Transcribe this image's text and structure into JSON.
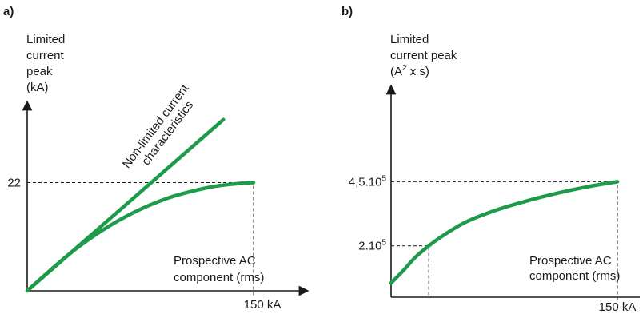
{
  "colors": {
    "curve": "#1e9b4a",
    "axis": "#1a1a1a"
  },
  "chart_data": [
    {
      "panel_label": "a)",
      "type": "line",
      "ylabel_lines": [
        "Limited",
        "current",
        "peak",
        "(kA)"
      ],
      "xlabel_lines": [
        "Prospective AC",
        "component (rms)"
      ],
      "xlim": [
        0,
        150
      ],
      "ylim": [
        0,
        38
      ],
      "xtick_label": "150 kA",
      "ytick_label": "22",
      "reference": {
        "x": 150,
        "y": 22
      },
      "annotation_lines": [
        "Non-limited current",
        "characteristics"
      ],
      "series": [
        {
          "x": [
            0,
            130
          ],
          "y": [
            0,
            34.8
          ]
        },
        {
          "x": [
            0,
            30,
            60,
            90,
            120,
            140,
            150
          ],
          "y": [
            0,
            8.0,
            14.2,
            18.5,
            21.0,
            21.8,
            22.0
          ]
        }
      ]
    },
    {
      "panel_label": "b)",
      "type": "line",
      "ylabel_lines": [
        "Limited",
        "current peak"
      ],
      "ylabel_unit": {
        "pre": "(A",
        "sup": "2",
        "post": " x s)"
      },
      "xlabel_lines": [
        "Prospective AC",
        "component (rms)"
      ],
      "xlim": [
        0,
        150
      ],
      "ylim": [
        0,
        700000
      ],
      "xtick_label": "150 kA",
      "yticks": [
        {
          "value": 450000,
          "base": "4,5.10",
          "sup": "5"
        },
        {
          "value": 200000,
          "base": "2.10",
          "sup": "5"
        }
      ],
      "reference_x_at_low": 25,
      "series": [
        {
          "x": [
            0,
            8,
            16,
            25,
            35,
            50,
            70,
            90,
            110,
            130,
            150
          ],
          "y": [
            55000,
            103000,
            155000,
            200000,
            242000,
            294000,
            340000,
            375000,
            405000,
            430000,
            450000
          ]
        }
      ]
    }
  ]
}
